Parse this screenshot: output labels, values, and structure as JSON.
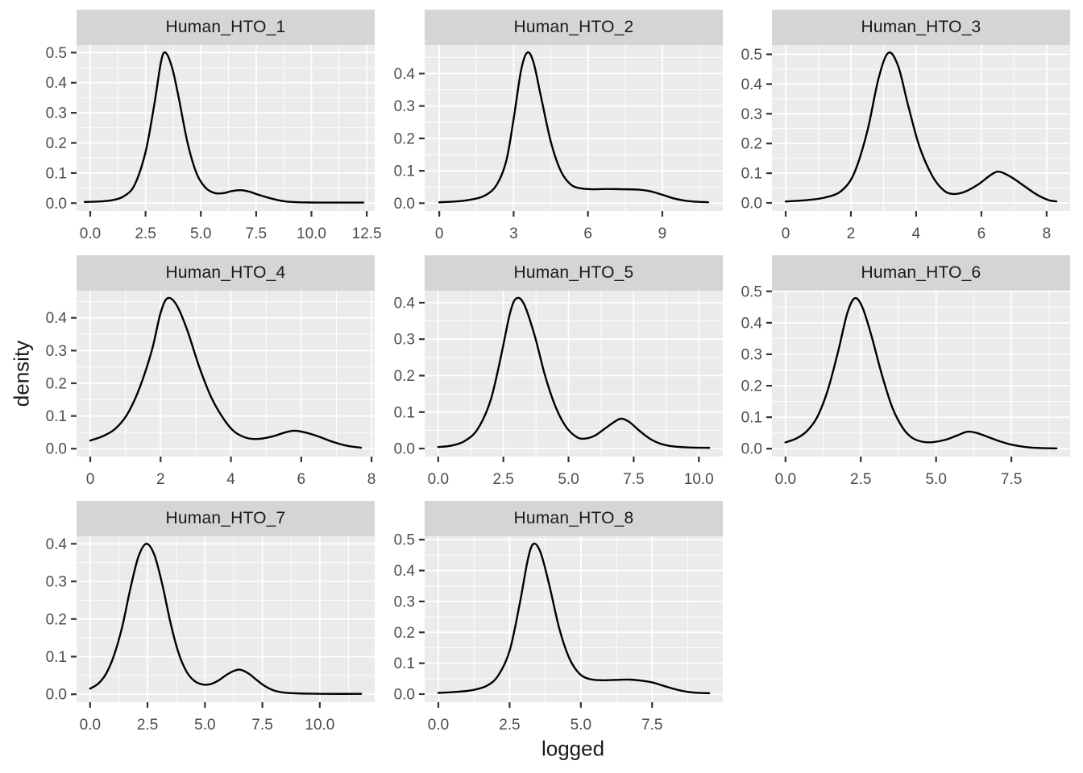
{
  "figure": {
    "y_axis_title": "density",
    "x_axis_title": "logged",
    "facets_per_row": 3,
    "colors": {
      "panel_bg": "#EBEBEB",
      "strip_bg": "#D5D5D5",
      "grid": "#FFFFFF",
      "curve": "#000000",
      "axis_text": "#4D4D4D",
      "tick_mark": "#333333",
      "strip_text": "#1A1A1A",
      "axis_title_text": "#1A1A1A"
    }
  },
  "chart_data": [
    {
      "type": "line",
      "title": "Human_HTO_1",
      "row": 0,
      "col": 0,
      "xlim": [
        -0.62,
        12.86
      ],
      "ylim": [
        -0.026,
        0.525
      ],
      "x_ticks": [
        {
          "v": 0,
          "label": "0.0"
        },
        {
          "v": 2.5,
          "label": "2.5"
        },
        {
          "v": 5,
          "label": "5.0"
        },
        {
          "v": 7.5,
          "label": "7.5"
        },
        {
          "v": 10,
          "label": "10.0"
        },
        {
          "v": 12.5,
          "label": "12.5"
        }
      ],
      "y_ticks": [
        {
          "v": 0,
          "label": "0.0"
        },
        {
          "v": 0.1,
          "label": "0.1"
        },
        {
          "v": 0.2,
          "label": "0.2"
        },
        {
          "v": 0.3,
          "label": "0.3"
        },
        {
          "v": 0.4,
          "label": "0.4"
        },
        {
          "v": 0.5,
          "label": "0.5"
        }
      ],
      "points": [
        [
          -0.25,
          0.004
        ],
        [
          0.5,
          0.006
        ],
        [
          1.0,
          0.01
        ],
        [
          1.5,
          0.022
        ],
        [
          2.0,
          0.06
        ],
        [
          2.5,
          0.17
        ],
        [
          2.9,
          0.33
        ],
        [
          3.2,
          0.47
        ],
        [
          3.4,
          0.5
        ],
        [
          3.7,
          0.45
        ],
        [
          4.0,
          0.35
        ],
        [
          4.4,
          0.2
        ],
        [
          4.8,
          0.1
        ],
        [
          5.2,
          0.052
        ],
        [
          5.6,
          0.034
        ],
        [
          6.0,
          0.033
        ],
        [
          6.4,
          0.04
        ],
        [
          6.8,
          0.043
        ],
        [
          7.2,
          0.038
        ],
        [
          7.6,
          0.028
        ],
        [
          8.2,
          0.015
        ],
        [
          8.8,
          0.006
        ],
        [
          9.4,
          0.003
        ],
        [
          10.5,
          0.002
        ],
        [
          11.5,
          0.002
        ],
        [
          12.35,
          0.002
        ]
      ]
    },
    {
      "type": "line",
      "title": "Human_HTO_2",
      "row": 0,
      "col": 1,
      "xlim": [
        -0.59,
        11.44
      ],
      "ylim": [
        -0.024,
        0.488
      ],
      "x_ticks": [
        {
          "v": 0,
          "label": "0"
        },
        {
          "v": 3,
          "label": "3"
        },
        {
          "v": 6,
          "label": "6"
        },
        {
          "v": 9,
          "label": "9"
        }
      ],
      "y_ticks": [
        {
          "v": 0,
          "label": "0.0"
        },
        {
          "v": 0.1,
          "label": "0.1"
        },
        {
          "v": 0.2,
          "label": "0.2"
        },
        {
          "v": 0.3,
          "label": "0.3"
        },
        {
          "v": 0.4,
          "label": "0.4"
        }
      ],
      "points": [
        [
          0,
          0.003
        ],
        [
          0.6,
          0.005
        ],
        [
          1.2,
          0.01
        ],
        [
          1.8,
          0.022
        ],
        [
          2.3,
          0.055
        ],
        [
          2.7,
          0.13
        ],
        [
          3.0,
          0.26
        ],
        [
          3.3,
          0.41
        ],
        [
          3.55,
          0.465
        ],
        [
          3.8,
          0.435
        ],
        [
          4.1,
          0.33
        ],
        [
          4.5,
          0.19
        ],
        [
          4.9,
          0.1
        ],
        [
          5.3,
          0.058
        ],
        [
          5.7,
          0.046
        ],
        [
          6.2,
          0.043
        ],
        [
          6.8,
          0.044
        ],
        [
          7.4,
          0.043
        ],
        [
          8.0,
          0.042
        ],
        [
          8.5,
          0.037
        ],
        [
          9.0,
          0.026
        ],
        [
          9.5,
          0.014
        ],
        [
          10.0,
          0.007
        ],
        [
          10.5,
          0.004
        ],
        [
          10.85,
          0.003
        ]
      ]
    },
    {
      "type": "line",
      "title": "Human_HTO_3",
      "row": 0,
      "col": 2,
      "xlim": [
        -0.42,
        8.72
      ],
      "ylim": [
        -0.027,
        0.531
      ],
      "x_ticks": [
        {
          "v": 0,
          "label": "0"
        },
        {
          "v": 2,
          "label": "2"
        },
        {
          "v": 4,
          "label": "4"
        },
        {
          "v": 6,
          "label": "6"
        },
        {
          "v": 8,
          "label": "8"
        }
      ],
      "y_ticks": [
        {
          "v": 0,
          "label": "0.0"
        },
        {
          "v": 0.1,
          "label": "0.1"
        },
        {
          "v": 0.2,
          "label": "0.2"
        },
        {
          "v": 0.3,
          "label": "0.3"
        },
        {
          "v": 0.4,
          "label": "0.4"
        },
        {
          "v": 0.5,
          "label": "0.5"
        }
      ],
      "points": [
        [
          0,
          0.005
        ],
        [
          0.6,
          0.009
        ],
        [
          1.2,
          0.018
        ],
        [
          1.7,
          0.04
        ],
        [
          2.1,
          0.1
        ],
        [
          2.5,
          0.24
        ],
        [
          2.85,
          0.42
        ],
        [
          3.15,
          0.505
        ],
        [
          3.45,
          0.46
        ],
        [
          3.75,
          0.33
        ],
        [
          4.1,
          0.19
        ],
        [
          4.5,
          0.09
        ],
        [
          4.85,
          0.042
        ],
        [
          5.15,
          0.03
        ],
        [
          5.5,
          0.038
        ],
        [
          5.9,
          0.062
        ],
        [
          6.3,
          0.095
        ],
        [
          6.55,
          0.105
        ],
        [
          6.9,
          0.088
        ],
        [
          7.3,
          0.058
        ],
        [
          7.7,
          0.028
        ],
        [
          8.05,
          0.01
        ],
        [
          8.3,
          0.005
        ]
      ]
    },
    {
      "type": "line",
      "title": "Human_HTO_4",
      "row": 1,
      "col": 0,
      "xlim": [
        -0.39,
        8.09
      ],
      "ylim": [
        -0.024,
        0.483
      ],
      "x_ticks": [
        {
          "v": 0,
          "label": "0"
        },
        {
          "v": 2,
          "label": "2"
        },
        {
          "v": 4,
          "label": "4"
        },
        {
          "v": 6,
          "label": "6"
        },
        {
          "v": 8,
          "label": "8"
        }
      ],
      "y_ticks": [
        {
          "v": 0,
          "label": "0.0"
        },
        {
          "v": 0.1,
          "label": "0.1"
        },
        {
          "v": 0.2,
          "label": "0.2"
        },
        {
          "v": 0.3,
          "label": "0.3"
        },
        {
          "v": 0.4,
          "label": "0.4"
        }
      ],
      "points": [
        [
          0,
          0.025
        ],
        [
          0.35,
          0.038
        ],
        [
          0.7,
          0.06
        ],
        [
          1.05,
          0.105
        ],
        [
          1.4,
          0.185
        ],
        [
          1.75,
          0.3
        ],
        [
          2.0,
          0.415
        ],
        [
          2.2,
          0.46
        ],
        [
          2.45,
          0.44
        ],
        [
          2.75,
          0.365
        ],
        [
          3.1,
          0.25
        ],
        [
          3.45,
          0.155
        ],
        [
          3.8,
          0.09
        ],
        [
          4.1,
          0.052
        ],
        [
          4.45,
          0.033
        ],
        [
          4.8,
          0.03
        ],
        [
          5.2,
          0.038
        ],
        [
          5.55,
          0.05
        ],
        [
          5.8,
          0.055
        ],
        [
          6.1,
          0.05
        ],
        [
          6.5,
          0.037
        ],
        [
          6.9,
          0.021
        ],
        [
          7.3,
          0.009
        ],
        [
          7.7,
          0.003
        ]
      ]
    },
    {
      "type": "line",
      "title": "Human_HTO_5",
      "row": 1,
      "col": 1,
      "xlim": [
        -0.52,
        10.92
      ],
      "ylim": [
        -0.022,
        0.433
      ],
      "x_ticks": [
        {
          "v": 0,
          "label": "0.0"
        },
        {
          "v": 2.5,
          "label": "2.5"
        },
        {
          "v": 5,
          "label": "5.0"
        },
        {
          "v": 7.5,
          "label": "7.5"
        },
        {
          "v": 10,
          "label": "10.0"
        }
      ],
      "y_ticks": [
        {
          "v": 0,
          "label": "0.0"
        },
        {
          "v": 0.1,
          "label": "0.1"
        },
        {
          "v": 0.2,
          "label": "0.2"
        },
        {
          "v": 0.3,
          "label": "0.3"
        },
        {
          "v": 0.4,
          "label": "0.4"
        }
      ],
      "points": [
        [
          0,
          0.004
        ],
        [
          0.5,
          0.008
        ],
        [
          1.0,
          0.02
        ],
        [
          1.5,
          0.052
        ],
        [
          2.0,
          0.13
        ],
        [
          2.4,
          0.25
        ],
        [
          2.75,
          0.37
        ],
        [
          3.0,
          0.412
        ],
        [
          3.3,
          0.395
        ],
        [
          3.7,
          0.31
        ],
        [
          4.1,
          0.2
        ],
        [
          4.5,
          0.115
        ],
        [
          4.9,
          0.06
        ],
        [
          5.3,
          0.032
        ],
        [
          5.6,
          0.027
        ],
        [
          6.0,
          0.035
        ],
        [
          6.4,
          0.055
        ],
        [
          6.8,
          0.075
        ],
        [
          7.05,
          0.082
        ],
        [
          7.35,
          0.072
        ],
        [
          7.7,
          0.05
        ],
        [
          8.1,
          0.028
        ],
        [
          8.5,
          0.014
        ],
        [
          9.0,
          0.006
        ],
        [
          9.6,
          0.003
        ],
        [
          10.4,
          0.002
        ]
      ]
    },
    {
      "type": "line",
      "title": "Human_HTO_6",
      "row": 1,
      "col": 2,
      "xlim": [
        -0.45,
        9.45
      ],
      "ylim": [
        -0.025,
        0.502
      ],
      "x_ticks": [
        {
          "v": 0,
          "label": "0.0"
        },
        {
          "v": 2.5,
          "label": "2.5"
        },
        {
          "v": 5,
          "label": "5.0"
        },
        {
          "v": 7.5,
          "label": "7.5"
        }
      ],
      "y_ticks": [
        {
          "v": 0,
          "label": "0.0"
        },
        {
          "v": 0.1,
          "label": "0.1"
        },
        {
          "v": 0.2,
          "label": "0.2"
        },
        {
          "v": 0.3,
          "label": "0.3"
        },
        {
          "v": 0.4,
          "label": "0.4"
        },
        {
          "v": 0.5,
          "label": "0.5"
        }
      ],
      "points": [
        [
          0,
          0.02
        ],
        [
          0.35,
          0.032
        ],
        [
          0.7,
          0.055
        ],
        [
          1.05,
          0.1
        ],
        [
          1.4,
          0.185
        ],
        [
          1.75,
          0.31
        ],
        [
          2.05,
          0.43
        ],
        [
          2.3,
          0.478
        ],
        [
          2.55,
          0.45
        ],
        [
          2.85,
          0.36
        ],
        [
          3.2,
          0.235
        ],
        [
          3.55,
          0.13
        ],
        [
          3.9,
          0.065
        ],
        [
          4.2,
          0.035
        ],
        [
          4.55,
          0.022
        ],
        [
          4.9,
          0.021
        ],
        [
          5.3,
          0.028
        ],
        [
          5.7,
          0.042
        ],
        [
          6.05,
          0.054
        ],
        [
          6.35,
          0.05
        ],
        [
          6.7,
          0.038
        ],
        [
          7.1,
          0.024
        ],
        [
          7.5,
          0.013
        ],
        [
          8.0,
          0.005
        ],
        [
          8.5,
          0.002
        ],
        [
          9.0,
          0.001
        ]
      ]
    },
    {
      "type": "line",
      "title": "Human_HTO_7",
      "row": 2,
      "col": 0,
      "xlim": [
        -0.59,
        12.39
      ],
      "ylim": [
        -0.021,
        0.42
      ],
      "x_ticks": [
        {
          "v": 0,
          "label": "0.0"
        },
        {
          "v": 2.5,
          "label": "2.5"
        },
        {
          "v": 5,
          "label": "5.0"
        },
        {
          "v": 7.5,
          "label": "7.5"
        },
        {
          "v": 10,
          "label": "10.0"
        }
      ],
      "y_ticks": [
        {
          "v": 0,
          "label": "0.0"
        },
        {
          "v": 0.1,
          "label": "0.1"
        },
        {
          "v": 0.2,
          "label": "0.2"
        },
        {
          "v": 0.3,
          "label": "0.3"
        },
        {
          "v": 0.4,
          "label": "0.4"
        }
      ],
      "points": [
        [
          0,
          0.015
        ],
        [
          0.35,
          0.028
        ],
        [
          0.7,
          0.055
        ],
        [
          1.05,
          0.105
        ],
        [
          1.4,
          0.18
        ],
        [
          1.75,
          0.28
        ],
        [
          2.1,
          0.365
        ],
        [
          2.45,
          0.4
        ],
        [
          2.8,
          0.37
        ],
        [
          3.15,
          0.29
        ],
        [
          3.5,
          0.19
        ],
        [
          3.85,
          0.11
        ],
        [
          4.2,
          0.06
        ],
        [
          4.55,
          0.035
        ],
        [
          4.9,
          0.026
        ],
        [
          5.25,
          0.027
        ],
        [
          5.6,
          0.037
        ],
        [
          5.95,
          0.052
        ],
        [
          6.3,
          0.063
        ],
        [
          6.55,
          0.065
        ],
        [
          6.9,
          0.055
        ],
        [
          7.25,
          0.038
        ],
        [
          7.6,
          0.022
        ],
        [
          8.0,
          0.01
        ],
        [
          8.5,
          0.004
        ],
        [
          9.2,
          0.002
        ],
        [
          10.2,
          0.001
        ],
        [
          11.8,
          0.001
        ]
      ]
    },
    {
      "type": "line",
      "title": "Human_HTO_8",
      "row": 2,
      "col": 1,
      "xlim": [
        -0.48,
        9.98
      ],
      "ylim": [
        -0.026,
        0.511
      ],
      "x_ticks": [
        {
          "v": 0,
          "label": "0.0"
        },
        {
          "v": 2.5,
          "label": "2.5"
        },
        {
          "v": 5,
          "label": "5.0"
        },
        {
          "v": 7.5,
          "label": "7.5"
        }
      ],
      "y_ticks": [
        {
          "v": 0,
          "label": "0.0"
        },
        {
          "v": 0.1,
          "label": "0.1"
        },
        {
          "v": 0.2,
          "label": "0.2"
        },
        {
          "v": 0.3,
          "label": "0.3"
        },
        {
          "v": 0.4,
          "label": "0.4"
        },
        {
          "v": 0.5,
          "label": "0.5"
        }
      ],
      "points": [
        [
          0,
          0.004
        ],
        [
          0.6,
          0.007
        ],
        [
          1.2,
          0.013
        ],
        [
          1.7,
          0.027
        ],
        [
          2.1,
          0.06
        ],
        [
          2.5,
          0.14
        ],
        [
          2.85,
          0.29
        ],
        [
          3.15,
          0.44
        ],
        [
          3.35,
          0.487
        ],
        [
          3.6,
          0.455
        ],
        [
          3.9,
          0.35
        ],
        [
          4.25,
          0.21
        ],
        [
          4.6,
          0.115
        ],
        [
          4.95,
          0.066
        ],
        [
          5.3,
          0.049
        ],
        [
          5.7,
          0.045
        ],
        [
          6.2,
          0.046
        ],
        [
          6.7,
          0.047
        ],
        [
          7.1,
          0.044
        ],
        [
          7.5,
          0.038
        ],
        [
          7.9,
          0.027
        ],
        [
          8.3,
          0.016
        ],
        [
          8.7,
          0.008
        ],
        [
          9.1,
          0.004
        ],
        [
          9.5,
          0.003
        ]
      ]
    }
  ]
}
